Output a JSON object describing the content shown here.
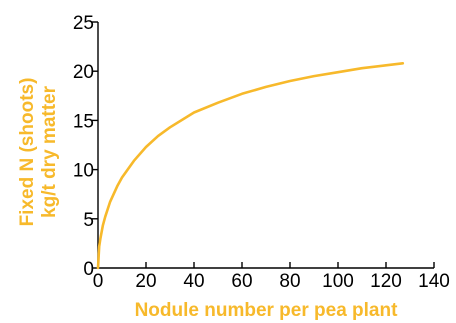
{
  "colors": {
    "curve": "#f7b92b",
    "axis": "#000000",
    "axis_title": "#f7b92b"
  },
  "chart_data": {
    "type": "line",
    "title": "",
    "xlabel": "Nodule number per pea plant",
    "ylabel_line1": "Fixed N (shoots)",
    "ylabel_line2": "kg/t dry matter",
    "xlim": [
      0,
      140
    ],
    "ylim": [
      0,
      25
    ],
    "xticks": [
      0,
      20,
      40,
      60,
      80,
      100,
      120,
      140
    ],
    "yticks": [
      0,
      5,
      10,
      15,
      20,
      25
    ],
    "grid": false,
    "series": [
      {
        "x": [
          0,
          0.5,
          1,
          2,
          3,
          5,
          8,
          10,
          15,
          20,
          25,
          30,
          40,
          50,
          60,
          70,
          80,
          90,
          100,
          110,
          120,
          127
        ],
        "y": [
          0,
          2.2,
          3.0,
          4.3,
          5.2,
          6.7,
          8.3,
          9.2,
          10.9,
          12.3,
          13.4,
          14.3,
          15.8,
          16.8,
          17.7,
          18.4,
          19.0,
          19.5,
          19.9,
          20.3,
          20.6,
          20.8
        ]
      }
    ]
  }
}
